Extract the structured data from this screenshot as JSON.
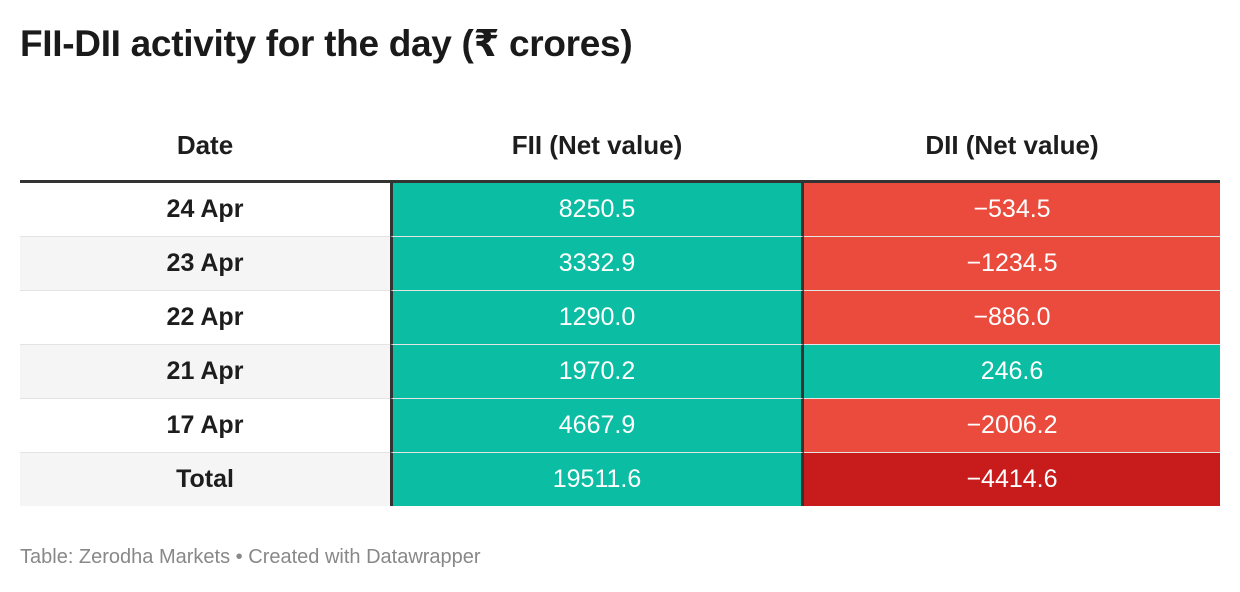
{
  "title": "FII-DII activity for the day (₹ crores)",
  "footer": {
    "source": "Table: Zerodha Markets",
    "separator": "•",
    "credit": "Created with Datawrapper"
  },
  "colors": {
    "positive": "#0abda3",
    "negative": "#ea4b3d",
    "strong_negative": "#c81c1c"
  },
  "chart_data": {
    "type": "table",
    "columns": [
      "Date",
      "FII (Net value)",
      "DII (Net value)"
    ],
    "rows": [
      {
        "date": "24 Apr",
        "fii": "8250.5",
        "dii": "−534.5"
      },
      {
        "date": "23 Apr",
        "fii": "3332.9",
        "dii": "−1234.5"
      },
      {
        "date": "22 Apr",
        "fii": "1290.0",
        "dii": "−886.0"
      },
      {
        "date": "21 Apr",
        "fii": "1970.2",
        "dii": "246.6"
      },
      {
        "date": "17 Apr",
        "fii": "4667.9",
        "dii": "−2006.2"
      },
      {
        "date": "Total",
        "fii": "19511.6",
        "dii": "−4414.6"
      }
    ]
  }
}
